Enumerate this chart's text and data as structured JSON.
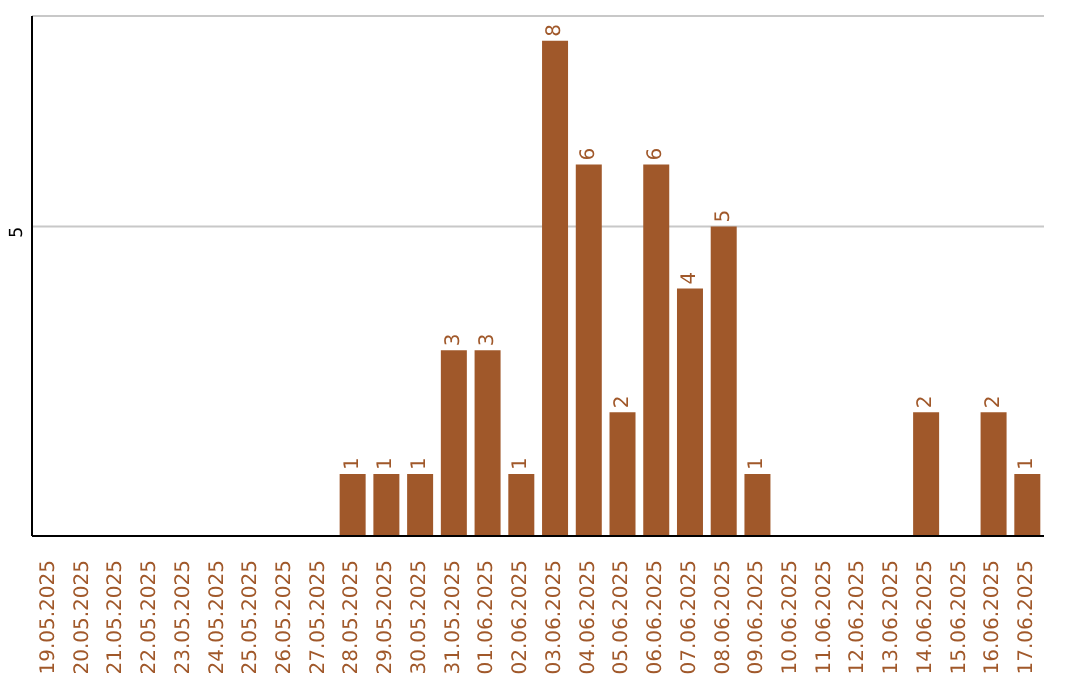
{
  "chart_data": {
    "type": "bar",
    "categories": [
      "19.05.2025",
      "20.05.2025",
      "21.05.2025",
      "22.05.2025",
      "23.05.2025",
      "24.05.2025",
      "25.05.2025",
      "26.05.2025",
      "27.05.2025",
      "28.05.2025",
      "29.05.2025",
      "30.05.2025",
      "31.05.2025",
      "01.06.2025",
      "02.06.2025",
      "03.06.2025",
      "04.06.2025",
      "05.06.2025",
      "06.06.2025",
      "07.06.2025",
      "08.06.2025",
      "09.06.2025",
      "10.06.2025",
      "11.06.2025",
      "12.06.2025",
      "13.06.2025",
      "14.06.2025",
      "15.06.2025",
      "16.06.2025",
      "17.06.2025"
    ],
    "values": [
      0,
      0,
      0,
      0,
      0,
      0,
      0,
      0,
      0,
      1,
      1,
      1,
      3,
      3,
      1,
      8,
      6,
      2,
      6,
      4,
      5,
      1,
      0,
      0,
      0,
      0,
      2,
      0,
      2,
      1
    ],
    "value_labels": [
      null,
      null,
      null,
      null,
      null,
      null,
      null,
      null,
      null,
      "1",
      "1",
      "1",
      "3",
      "3",
      "1",
      "8",
      "6",
      "2",
      "6",
      "4",
      "5",
      "1",
      null,
      null,
      null,
      null,
      "2",
      null,
      "2",
      "1"
    ],
    "color": "#a0582a",
    "ylim": [
      0,
      8.4
    ],
    "yticks": [
      5
    ],
    "grid": "y",
    "legend": false
  }
}
